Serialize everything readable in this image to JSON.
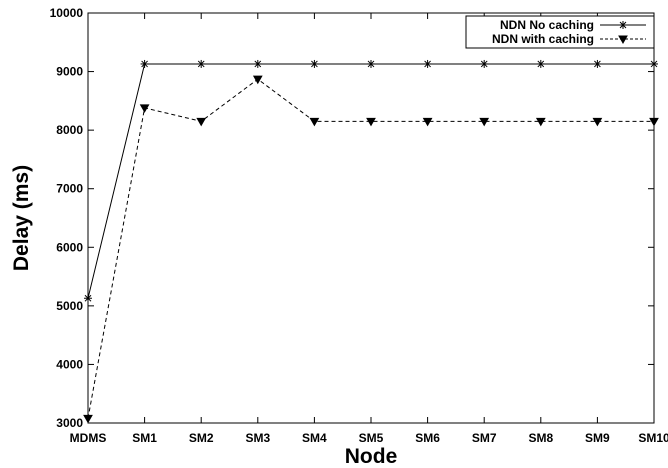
{
  "chart_data": {
    "type": "line",
    "xlabel": "Node",
    "ylabel": "Delay (ms)",
    "categories": [
      "MDMS",
      "SM1",
      "SM2",
      "SM3",
      "SM4",
      "SM5",
      "SM6",
      "SM7",
      "SM8",
      "SM9",
      "SM10"
    ],
    "ylim": [
      3000,
      10000
    ],
    "yticks": [
      3000,
      4000,
      5000,
      6000,
      7000,
      8000,
      9000,
      10000
    ],
    "grid": false,
    "legend_position": "top-right",
    "series": [
      {
        "name": "NDN No caching",
        "line_style": "solid",
        "marker": "asterisk",
        "color": "#000000",
        "values": [
          5130,
          9130,
          9130,
          9130,
          9130,
          9130,
          9130,
          9130,
          9130,
          9130,
          9130
        ]
      },
      {
        "name": "NDN with caching",
        "line_style": "dashed",
        "marker": "triangle-down",
        "color": "#000000",
        "values": [
          3080,
          8380,
          8150,
          8870,
          8150,
          8150,
          8150,
          8150,
          8150,
          8150,
          8150
        ]
      }
    ]
  }
}
